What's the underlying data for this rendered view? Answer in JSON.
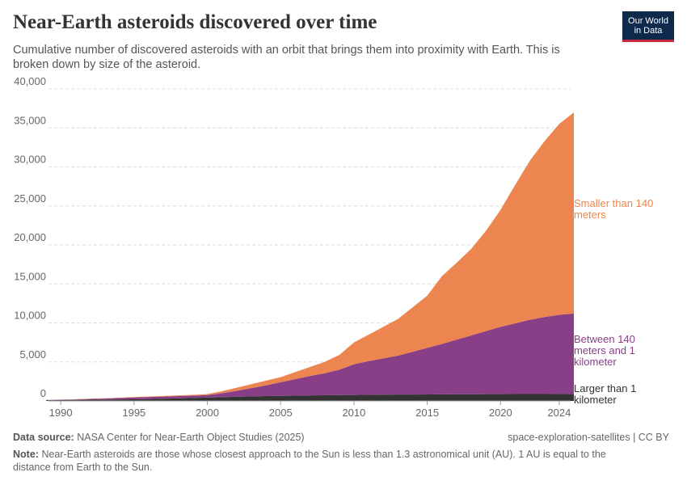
{
  "chart_data": {
    "type": "stacked_area",
    "title": "Near-Earth asteroids discovered over time",
    "subtitle": "Cumulative number of discovered asteroids with an orbit that brings them into proximity with Earth. This is broken down by size of the asteroid.",
    "x": [
      1989,
      1990,
      1991,
      1992,
      1993,
      1994,
      1995,
      1996,
      1997,
      1998,
      1999,
      2000,
      2001,
      2002,
      2003,
      2004,
      2005,
      2006,
      2007,
      2008,
      2009,
      2010,
      2011,
      2012,
      2013,
      2014,
      2015,
      2016,
      2017,
      2018,
      2019,
      2020,
      2021,
      2022,
      2023,
      2024,
      2025
    ],
    "series": [
      {
        "name": "Larger than 1 kilometer",
        "color": "#333333",
        "values": [
          90,
          110,
          130,
          150,
          170,
          190,
          210,
          240,
          280,
          320,
          380,
          430,
          480,
          530,
          580,
          620,
          650,
          680,
          710,
          730,
          750,
          770,
          790,
          800,
          810,
          820,
          830,
          840,
          850,
          860,
          865,
          870,
          875,
          880,
          885,
          890,
          895
        ]
      },
      {
        "name": "Between 140 meters and 1 kilometer",
        "color": "#883f88",
        "values": [
          30,
          40,
          70,
          100,
          130,
          180,
          230,
          260,
          280,
          300,
          300,
          320,
          520,
          770,
          1070,
          1380,
          1750,
          2120,
          2490,
          2820,
          3250,
          3930,
          4310,
          4650,
          4990,
          5480,
          5970,
          6460,
          7000,
          7540,
          8085,
          8630,
          9075,
          9520,
          9865,
          10160,
          10305
        ]
      },
      {
        "name": "Smaller than 140 meters",
        "color": "#ed8550",
        "values": [
          10,
          10,
          20,
          30,
          40,
          50,
          60,
          70,
          80,
          90,
          100,
          130,
          250,
          400,
          500,
          600,
          650,
          900,
          1150,
          1450,
          1900,
          2800,
          3400,
          4050,
          4700,
          5700,
          6700,
          8700,
          9850,
          11100,
          12850,
          15000,
          17750,
          20400,
          22550,
          24450,
          25800
        ]
      }
    ],
    "xlim": [
      1989,
      2025
    ],
    "xticks": [
      1990,
      1995,
      2000,
      2005,
      2010,
      2015,
      2020,
      2024
    ],
    "ylim": [
      0,
      40000
    ],
    "yticks": [
      0,
      {
        "value": 5000,
        "label": "5,000"
      },
      {
        "value": 10000,
        "label": "10,000"
      },
      {
        "value": 15000,
        "label": "15,000"
      },
      {
        "value": 20000,
        "label": "20,000"
      },
      {
        "value": 25000,
        "label": "25,000"
      },
      {
        "value": 30000,
        "label": "30,000"
      },
      {
        "value": 35000,
        "label": "35,000"
      },
      {
        "value": 40000,
        "label": "40,000"
      }
    ],
    "grid": true
  },
  "logo": [
    "Our World",
    "in Data"
  ],
  "footer": {
    "data_source_label": "Data source:",
    "data_source": "NASA Center for Near-Earth Object Studies (2025)",
    "license": "space-exploration-satellites | CC BY",
    "note_label": "Note:",
    "note": "Near-Earth asteroids are those whose closest approach to the Sun is less than 1.3 astronomical unit (AU). 1 AU is equal to the distance from Earth to the Sun."
  }
}
